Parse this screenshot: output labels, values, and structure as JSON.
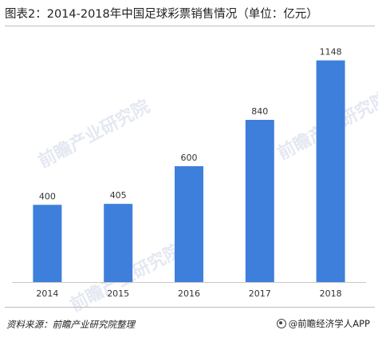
{
  "title": "图表2：2014-2018年中国足球彩票销售情况（单位：亿元）",
  "watermark_text": "前瞻产业研究院",
  "footer": {
    "source": "资料来源：前瞻产业研究院整理",
    "brand": "@前瞻经济学人APP"
  },
  "colors": {
    "bar": "#3f7fdc",
    "text": "#333333"
  },
  "chart_data": {
    "type": "bar",
    "categories": [
      "2014",
      "2015",
      "2016",
      "2017",
      "2018"
    ],
    "values": [
      400,
      405,
      600,
      840,
      1148
    ],
    "title": "图表2：2014-2018年中国足球彩票销售情况（单位：亿元）",
    "xlabel": "",
    "ylabel": "",
    "ylim": [
      0,
      1200
    ],
    "grid": false,
    "legend": "none",
    "data_labels": true
  }
}
